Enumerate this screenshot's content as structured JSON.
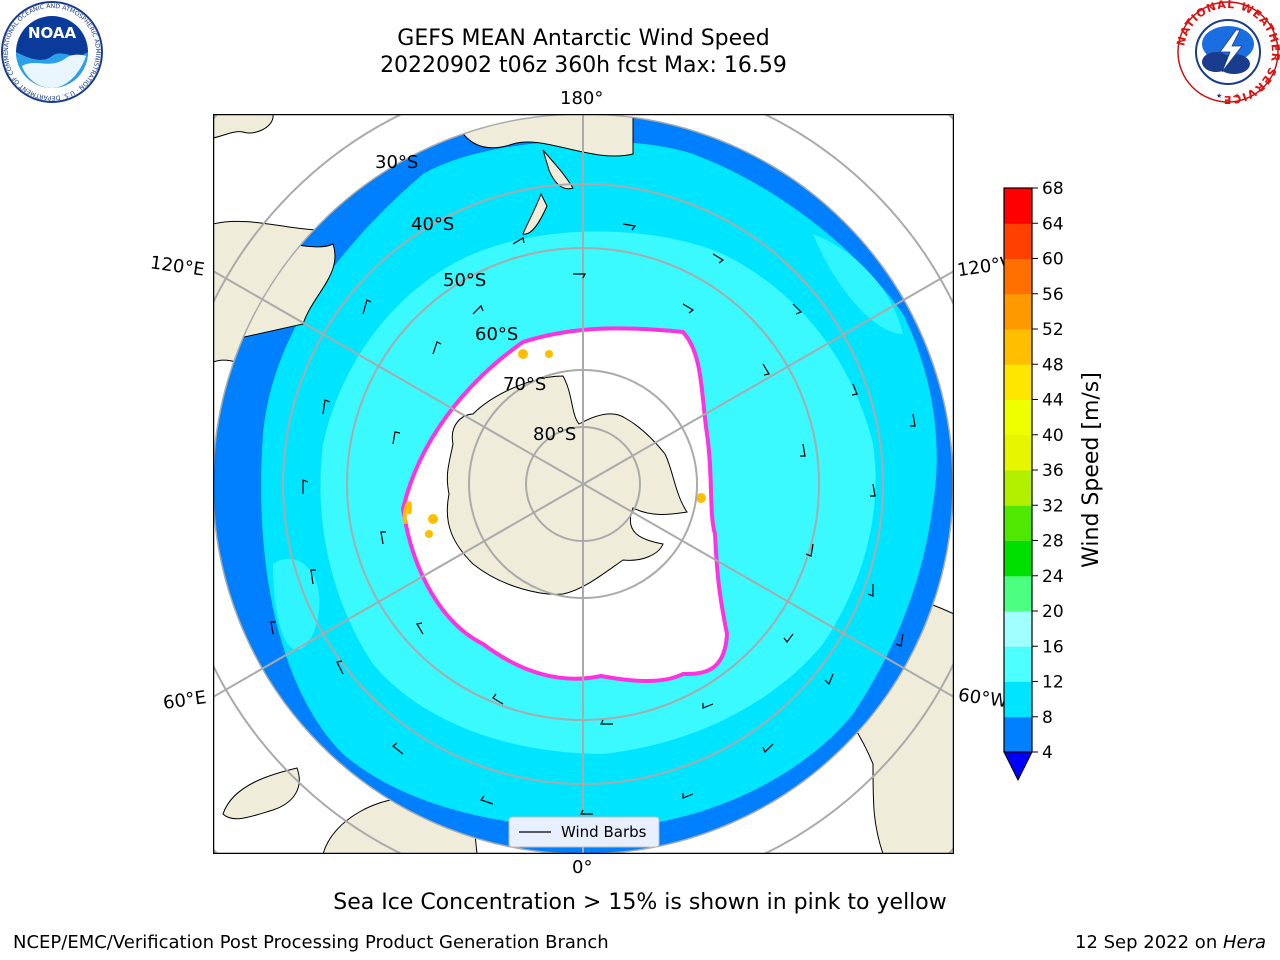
{
  "header": {
    "title_line1": "GEFS MEAN Antarctic Wind Speed",
    "title_line2": "20220902 t06z 360h fcst   Max: 16.59"
  },
  "logos": {
    "left": "NOAA",
    "left_ring_text": "NATIONAL OCEANIC AND ATMOSPHERIC ADMINISTRATION · U.S. DEPARTMENT OF COMMERCE",
    "right_ring_text": "NATIONAL WEATHER SERVICE"
  },
  "map": {
    "projection": "south-polar-stereographic",
    "longitude_labels": {
      "top": "180°",
      "bottom": "0°",
      "upper_left": "120°E",
      "lower_left": "60°E",
      "upper_right": "120°W",
      "lower_right": "60°W"
    },
    "latitude_labels": [
      "30°S",
      "40°S",
      "50°S",
      "60°S",
      "70°S",
      "80°S"
    ],
    "legend_label": "Wind Barbs"
  },
  "colorbar": {
    "label": "Wind Speed [m/s]",
    "ticks": [
      "4",
      "8",
      "12",
      "16",
      "20",
      "24",
      "28",
      "32",
      "36",
      "40",
      "44",
      "48",
      "52",
      "56",
      "60",
      "64",
      "68"
    ],
    "colors": [
      "#0080ff",
      "#00e5ff",
      "#4dffff",
      "#a0ffff",
      "#4dff80",
      "#00e000",
      "#4ee800",
      "#b3f000",
      "#e6f500",
      "#f0ff00",
      "#ffe600",
      "#ffbf00",
      "#ff9900",
      "#ff7000",
      "#ff4000",
      "#ff0000"
    ],
    "under_color": "#0000ff"
  },
  "colors": {
    "land": "#efedda",
    "ocean_low": "#0080ff",
    "ocean_mid": "#00e5ff",
    "ocean_high": "#4dffff",
    "sea_ice_edge": "#ff33dd",
    "sea_ice_yellow": "#ffbf00"
  },
  "caption": "Sea Ice Concentration > 15% is shown in pink to yellow",
  "footer": {
    "left": "NCEP/EMC/Verification Post Processing Product Generation Branch",
    "date": "12 Sep 2022 on ",
    "host": "Hera"
  }
}
